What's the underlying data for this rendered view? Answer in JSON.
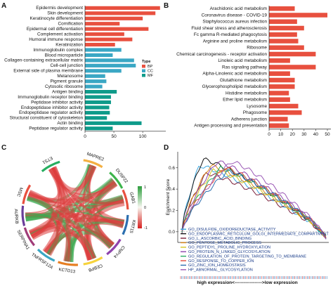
{
  "chart_data": [
    {
      "panel": "A",
      "type": "bar",
      "orientation": "horizontal",
      "categories": [
        "Epidermis development",
        "Skin development",
        "Keratinocyte differentiation",
        "Cornification",
        "Epidermal cell differentiation",
        "Complement activation",
        "Humoral immune response",
        "Keratinization",
        "Immunoglobulin complex",
        "Blood microparticle",
        "Collagen-containing extracellular matrix",
        "Cell-cell junction",
        "External side of plasma membrane",
        "Melanosome",
        "Pigment granule",
        "Cytosolic ribosome",
        "Antigen binding",
        "Immunoglobulin receptor binding",
        "Peptidase inhibitor activity",
        "Endopeptidase inhibitor activity",
        "Endopeptidase regulator activity",
        "Structural constituent of cytoskeleton",
        "Actin binding",
        "Peptidase regulator activity"
      ],
      "values": [
        130,
        122,
        100,
        60,
        110,
        68,
        82,
        52,
        63,
        48,
        85,
        88,
        63,
        35,
        37,
        30,
        55,
        45,
        45,
        42,
        43,
        38,
        98,
        48
      ],
      "groups": [
        "BP",
        "BP",
        "BP",
        "BP",
        "BP",
        "BP",
        "BP",
        "BP",
        "CC",
        "CC",
        "CC",
        "CC",
        "CC",
        "CC",
        "CC",
        "CC",
        "MF",
        "MF",
        "MF",
        "MF",
        "MF",
        "MF",
        "MF",
        "MF"
      ],
      "xticks": [
        0,
        50,
        100
      ],
      "xlim": [
        0,
        140
      ],
      "legend": {
        "title": "Type",
        "entries": [
          "BP",
          "CC",
          "MF"
        ],
        "colors": [
          "#e8503f",
          "#3aa7c4",
          "#0e9b8a"
        ],
        "placement": "right"
      }
    },
    {
      "panel": "B",
      "type": "bar",
      "orientation": "horizontal",
      "categories": [
        "Arachidonic acid metabolism",
        "Coronavirus disease - COVID-19",
        "Staphylococcus aureus infection",
        "Fluid shear stress and atherosclerosis",
        "Fc gamma R-mediated phagocytosis",
        "Arginine and proline metabolism",
        "Ribosome",
        "Chemical carcinogenesis - receptor activation",
        "Linoleic acid metabolism",
        "Ras signaling pathway",
        "Alpha-Linolenic acid metabolism",
        "Glutathione metabolism",
        "Glycerophospholipid metabolism",
        "Histidine metabolism",
        "Ether lipid metabolism",
        "Lysosome",
        "Phagosome",
        "Adherens junction",
        "Antigen processing and presentation"
      ],
      "values": [
        22,
        50,
        24,
        30,
        24,
        25,
        30,
        40,
        18,
        40,
        18,
        22,
        22,
        17,
        18,
        25,
        28,
        16,
        17
      ],
      "xticks": [
        0,
        10,
        20,
        30,
        40,
        50
      ],
      "xlim": [
        0,
        53
      ],
      "color": "#e8503f"
    },
    {
      "panel": "C",
      "type": "chord",
      "genes": [
        "MAPRE2",
        "DUSP22",
        "GAB1",
        "KRT15",
        "CNPY4",
        "CEBPB",
        "KCTD13",
        "TNFRSF12A",
        "SERPINA1",
        "AURKB",
        "MSC",
        "ETS1"
      ],
      "colorbar": {
        "ticks": [
          "1",
          "0",
          "-1"
        ],
        "colors": [
          "#2e9e3e",
          "#f7f7f0",
          "#d7201f"
        ]
      }
    },
    {
      "panel": "D",
      "type": "line",
      "ylabel": "Enrichment Score",
      "xlabel": "high expression<------------------>low expression",
      "yticks": [
        "0.0",
        "0.2",
        "0.4",
        "0.6"
      ],
      "ylim": [
        -0.1,
        0.75
      ],
      "series": [
        {
          "name": "GO_DISULFIDE_OXIDOREDUCTASE_ACTIVITY",
          "color": "#3aa7e0",
          "peak": 0.62
        },
        {
          "name": "GO_ENDOPLASMIC_RETICULUM_GOLGI_INTERMEDIATE_COMPARTMENT",
          "color": "#161616",
          "peak": 0.68
        },
        {
          "name": "GO_L_ASCORBIC_ACID_BINDING",
          "color": "#7a1f3a",
          "peak": 0.55
        },
        {
          "name": "GO_PENTOSE_METABOLIC_PROCESS",
          "color": "#e08a1a",
          "peak": 0.62
        },
        {
          "name": "GO_PEPTIDYL_PROLINE_HYDROXYLATION",
          "color": "#d6c522",
          "peak": 0.58
        },
        {
          "name": "GO_PROTEIN_N_LINKED_GLYCOSYLATION",
          "color": "#8e44ad",
          "peak": 0.66
        },
        {
          "name": "GO_REGULATION_OF_PROTEIN_TARGETING_TO_MEMBRANE",
          "color": "#27ae60",
          "peak": 0.6
        },
        {
          "name": "GO_RESPONSE_TO_COPPER_ION",
          "color": "#e24a3a",
          "peak": 0.6
        },
        {
          "name": "GO_ZINC_ION_HOMEOSTASIS",
          "color": "#2c6fb0",
          "peak": 0.57
        },
        {
          "name": "HP_ABNORMAL_GLYCOSYLATION",
          "color": "#9b59b6",
          "peak": 0.66
        }
      ]
    }
  ]
}
